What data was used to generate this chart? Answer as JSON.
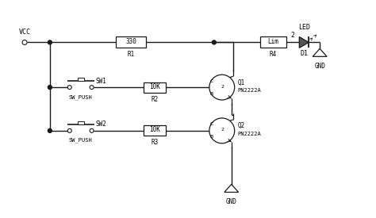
{
  "bg_color": "#ffffff",
  "line_color": "#1a1a1a",
  "vcc_label": "VCC",
  "led_label": "LED",
  "d1_label": "D1",
  "r1_val": "330",
  "r1_label": "R1",
  "r2_val": "10K",
  "r2_label": "R2",
  "r3_val": "10K",
  "r3_label": "R3",
  "r4_val": "Lim",
  "r4_label": "R4",
  "sw1_label": "SW1",
  "sw1_sub": "SW_PUSH",
  "sw2_label": "SW2",
  "sw2_sub": "SW_PUSH",
  "q1_label": "Q1",
  "q1_sub": "PN2222A",
  "q2_label": "Q2",
  "q2_sub": "PN2222A",
  "gnd_label": "GND",
  "node2_label": "2"
}
